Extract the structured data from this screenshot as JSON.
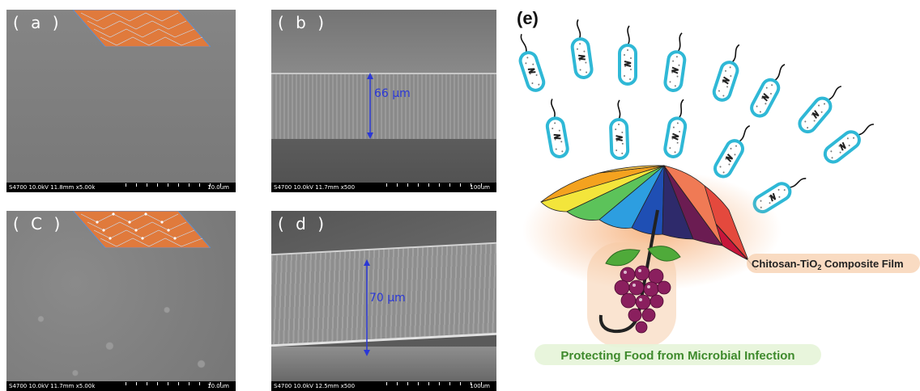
{
  "panels": {
    "a": {
      "label": "( a )",
      "info": "S4700 10.0kV 11.8mm x5.00k",
      "scale": "10.0um"
    },
    "b": {
      "label": "( b )",
      "info": "S4700 10.0kV 11.7mm x500",
      "scale": "100um",
      "thickness": "66 µm"
    },
    "c": {
      "label": "( C )",
      "info": "S4700 10.0kV 11.7mm x5.00k",
      "scale": "10.0um"
    },
    "d": {
      "label": "( d )",
      "info": "S4700 10.0kV 12.5mm x500",
      "scale": "100um",
      "thickness": "70 µm"
    },
    "e": {
      "label": "(e)",
      "film_label_prefix": "Chitosan-TiO",
      "film_label_sub": "2",
      "film_label_suffix": " Composite Film",
      "caption": "Protecting Food from Microbial Infection"
    }
  },
  "colors": {
    "sem_gray": "#7c7c7c",
    "arrow_blue": "#2a37d6",
    "mesh_orange": "#e07a3c",
    "bacteria_cyan": "#2fb8d6",
    "grape_purple": "#8a1f5e",
    "caption_green": "#3e8a2c"
  }
}
